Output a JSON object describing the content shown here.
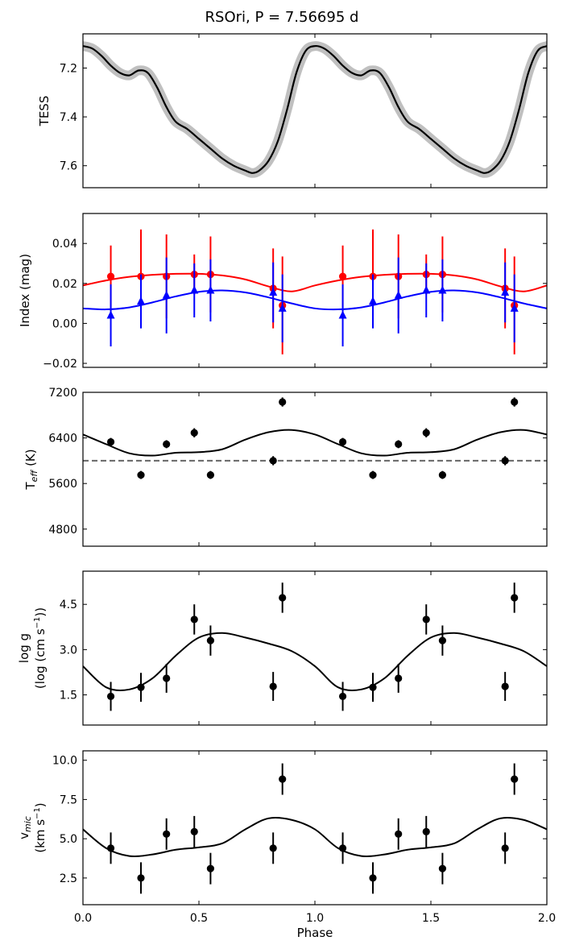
{
  "title": "RSOri, P = 7.56695 d",
  "xlabel": "Phase",
  "x_ticks": [
    0.0,
    0.5,
    1.0,
    1.5,
    2.0
  ],
  "x_tick_labels": [
    "0.0",
    "0.5",
    "1.0",
    "1.5",
    "2.0"
  ],
  "xlim": [
    0,
    2
  ],
  "colors": {
    "red": "#ff0000",
    "blue": "#0000ff",
    "black": "#000000",
    "grey_band": "#c0c0c0",
    "dashed": "#666666"
  },
  "chart_data": [
    {
      "type": "line",
      "ylabel": "TESS",
      "ylim": [
        7.69,
        7.06
      ],
      "inverted_y": true,
      "y_ticks": [
        7.2,
        7.4,
        7.6
      ],
      "y_tick_labels": [
        "7.2",
        "7.4",
        "7.6"
      ],
      "series": [
        {
          "name": "TESS light curve",
          "x": [
            0.0,
            0.04,
            0.08,
            0.12,
            0.16,
            0.2,
            0.24,
            0.28,
            0.32,
            0.36,
            0.4,
            0.45,
            0.5,
            0.55,
            0.6,
            0.65,
            0.7,
            0.73,
            0.76,
            0.8,
            0.84,
            0.88,
            0.92,
            0.96,
            1.0,
            1.04,
            1.08,
            1.12,
            1.16,
            1.2,
            1.24,
            1.28,
            1.32,
            1.36,
            1.4,
            1.45,
            1.5,
            1.55,
            1.6,
            1.65,
            1.7,
            1.73,
            1.76,
            1.8,
            1.84,
            1.88,
            1.92,
            1.96,
            2.0
          ],
          "y": [
            7.11,
            7.12,
            7.15,
            7.19,
            7.22,
            7.23,
            7.21,
            7.22,
            7.28,
            7.36,
            7.42,
            7.45,
            7.49,
            7.53,
            7.57,
            7.6,
            7.62,
            7.63,
            7.62,
            7.58,
            7.5,
            7.37,
            7.22,
            7.13,
            7.11,
            7.12,
            7.15,
            7.19,
            7.22,
            7.23,
            7.21,
            7.22,
            7.28,
            7.36,
            7.42,
            7.45,
            7.49,
            7.53,
            7.57,
            7.6,
            7.62,
            7.63,
            7.62,
            7.58,
            7.5,
            7.37,
            7.22,
            7.13,
            7.11
          ]
        }
      ]
    },
    {
      "type": "scatter",
      "ylabel": "Index (mag)",
      "ylim": [
        -0.022,
        0.055
      ],
      "y_ticks": [
        -0.02,
        0.0,
        0.02,
        0.04
      ],
      "y_tick_labels": [
        "−0.02",
        "0.00",
        "0.02",
        "0.04"
      ],
      "series": [
        {
          "name": "red index",
          "color": "red",
          "marker": "circle",
          "x": [
            0.12,
            0.25,
            0.36,
            0.48,
            0.55,
            0.82,
            0.86,
            1.12,
            1.25,
            1.36,
            1.48,
            1.55,
            1.82,
            1.86
          ],
          "y": [
            0.0235,
            0.0235,
            0.0235,
            0.0245,
            0.0245,
            0.0175,
            0.009,
            0.0235,
            0.0235,
            0.0235,
            0.0245,
            0.0245,
            0.0175,
            0.009
          ],
          "err": [
            0.0155,
            0.0235,
            0.021,
            0.01,
            0.019,
            0.02,
            0.0245,
            0.0155,
            0.0235,
            0.021,
            0.01,
            0.019,
            0.02,
            0.0245
          ],
          "fit_x": [
            0.0,
            0.1,
            0.2,
            0.3,
            0.4,
            0.5,
            0.6,
            0.7,
            0.8,
            0.9,
            1.0,
            1.1,
            1.2,
            1.3,
            1.4,
            1.5,
            1.6,
            1.7,
            1.8,
            1.9,
            2.0
          ],
          "fit_y": [
            0.019,
            0.0215,
            0.0233,
            0.0243,
            0.0248,
            0.0248,
            0.024,
            0.022,
            0.0185,
            0.016,
            0.019,
            0.0215,
            0.0233,
            0.0243,
            0.0248,
            0.0248,
            0.024,
            0.022,
            0.0185,
            0.016,
            0.019
          ]
        },
        {
          "name": "blue index",
          "color": "blue",
          "marker": "triangle",
          "x": [
            0.12,
            0.25,
            0.36,
            0.48,
            0.55,
            0.82,
            0.86,
            1.12,
            1.25,
            1.36,
            1.48,
            1.55,
            1.82,
            1.86
          ],
          "y": [
            0.004,
            0.011,
            0.014,
            0.0165,
            0.0165,
            0.0155,
            0.0075,
            0.004,
            0.011,
            0.014,
            0.0165,
            0.0165,
            0.0155,
            0.0075
          ],
          "err": [
            0.0155,
            0.0135,
            0.019,
            0.0135,
            0.0155,
            0.015,
            0.017,
            0.0155,
            0.0135,
            0.019,
            0.0135,
            0.0155,
            0.015,
            0.017
          ],
          "fit_x": [
            0.0,
            0.1,
            0.2,
            0.3,
            0.4,
            0.5,
            0.6,
            0.7,
            0.8,
            0.9,
            1.0,
            1.1,
            1.2,
            1.3,
            1.4,
            1.5,
            1.6,
            1.7,
            1.8,
            1.9,
            2.0
          ],
          "fit_y": [
            0.0075,
            0.007,
            0.008,
            0.0105,
            0.0135,
            0.0158,
            0.0165,
            0.0155,
            0.013,
            0.01,
            0.0075,
            0.007,
            0.008,
            0.0105,
            0.0135,
            0.0158,
            0.0165,
            0.0155,
            0.013,
            0.01,
            0.0075
          ]
        }
      ]
    },
    {
      "type": "scatter",
      "ylabel": "T_eff (K)",
      "ylabel_main": "T",
      "ylabel_sub": "eff",
      "ylabel_tail": " (K)",
      "ylim": [
        4500,
        7200
      ],
      "y_ticks": [
        4800,
        5600,
        6400,
        7200
      ],
      "y_tick_labels": [
        "4800",
        "5600",
        "6400",
        "7200"
      ],
      "reference_line": 6000,
      "series": [
        {
          "name": "Teff",
          "color": "black",
          "marker": "circle",
          "x": [
            0.12,
            0.25,
            0.36,
            0.48,
            0.55,
            0.82,
            0.86,
            1.12,
            1.25,
            1.36,
            1.48,
            1.55,
            1.82,
            1.86
          ],
          "y": [
            6330,
            5750,
            6290,
            6490,
            5750,
            6000,
            7030,
            6330,
            5750,
            6290,
            6490,
            5750,
            6000,
            7030
          ],
          "err": [
            70,
            70,
            70,
            80,
            70,
            80,
            80,
            70,
            70,
            70,
            80,
            70,
            80,
            80
          ],
          "fit_x": [
            0.0,
            0.1,
            0.2,
            0.3,
            0.4,
            0.5,
            0.6,
            0.7,
            0.8,
            0.9,
            1.0,
            1.1,
            1.2,
            1.3,
            1.4,
            1.5,
            1.6,
            1.7,
            1.8,
            1.9,
            2.0
          ],
          "fit_y": [
            6460,
            6290,
            6130,
            6090,
            6140,
            6150,
            6200,
            6370,
            6500,
            6540,
            6460,
            6290,
            6130,
            6090,
            6140,
            6150,
            6200,
            6370,
            6500,
            6540,
            6460
          ]
        }
      ]
    },
    {
      "type": "scatter",
      "ylabel": "log g",
      "ylabel_line2": "(log (cm s",
      "ylabel_line2_sup": "−1",
      "ylabel_line2_tail": "))",
      "ylim": [
        0.5,
        5.6
      ],
      "y_ticks": [
        1.5,
        3.0,
        4.5
      ],
      "y_tick_labels": [
        "1.5",
        "3.0",
        "4.5"
      ],
      "series": [
        {
          "name": "log g",
          "color": "black",
          "marker": "circle",
          "x": [
            0.12,
            0.25,
            0.36,
            0.48,
            0.55,
            0.82,
            0.86,
            1.12,
            1.25,
            1.36,
            1.48,
            1.55,
            1.82,
            1.86
          ],
          "y": [
            1.45,
            1.75,
            2.05,
            4.0,
            3.3,
            1.78,
            4.72,
            1.45,
            1.75,
            2.05,
            4.0,
            3.3,
            1.78,
            4.72
          ],
          "err": [
            0.48,
            0.48,
            0.48,
            0.5,
            0.5,
            0.48,
            0.5,
            0.48,
            0.48,
            0.48,
            0.5,
            0.5,
            0.48,
            0.5
          ],
          "fit_x": [
            0.0,
            0.1,
            0.2,
            0.3,
            0.4,
            0.5,
            0.6,
            0.7,
            0.8,
            0.9,
            1.0,
            1.1,
            1.2,
            1.3,
            1.4,
            1.5,
            1.6,
            1.7,
            1.8,
            1.9,
            2.0
          ],
          "fit_y": [
            2.45,
            1.75,
            1.68,
            2.05,
            2.8,
            3.4,
            3.55,
            3.4,
            3.2,
            2.95,
            2.45,
            1.75,
            1.68,
            2.05,
            2.8,
            3.4,
            3.55,
            3.4,
            3.2,
            2.95,
            2.45
          ]
        }
      ]
    },
    {
      "type": "scatter",
      "ylabel": "v_mic (km s^-1)",
      "ylabel_main": "v",
      "ylabel_sub": "mic",
      "ylabel_line2": "(km s",
      "ylabel_line2_sup": "−1",
      "ylabel_line2_tail": ")",
      "ylim": [
        0.8,
        10.6
      ],
      "y_ticks": [
        2.5,
        5.0,
        7.5,
        10.0
      ],
      "y_tick_labels": [
        "2.5",
        "5.0",
        "7.5",
        "10.0"
      ],
      "series": [
        {
          "name": "v_mic",
          "color": "black",
          "marker": "circle",
          "x": [
            0.12,
            0.25,
            0.36,
            0.48,
            0.55,
            0.82,
            0.86,
            1.12,
            1.25,
            1.36,
            1.48,
            1.55,
            1.82,
            1.86
          ],
          "y": [
            4.4,
            2.5,
            5.3,
            5.45,
            3.1,
            4.4,
            8.8,
            4.4,
            2.5,
            5.3,
            5.45,
            3.1,
            4.4,
            8.8
          ],
          "err": [
            1.0,
            1.0,
            1.0,
            1.0,
            1.0,
            1.0,
            1.0,
            1.0,
            1.0,
            1.0,
            1.0,
            1.0,
            1.0,
            1.0
          ],
          "fit_x": [
            0.0,
            0.1,
            0.2,
            0.3,
            0.4,
            0.5,
            0.6,
            0.7,
            0.8,
            0.9,
            1.0,
            1.1,
            1.2,
            1.3,
            1.4,
            1.5,
            1.6,
            1.7,
            1.8,
            1.9,
            2.0
          ],
          "fit_y": [
            5.6,
            4.4,
            3.9,
            4.0,
            4.3,
            4.45,
            4.7,
            5.6,
            6.3,
            6.2,
            5.6,
            4.4,
            3.9,
            4.0,
            4.3,
            4.45,
            4.7,
            5.6,
            6.3,
            6.2,
            5.6
          ]
        }
      ]
    }
  ]
}
